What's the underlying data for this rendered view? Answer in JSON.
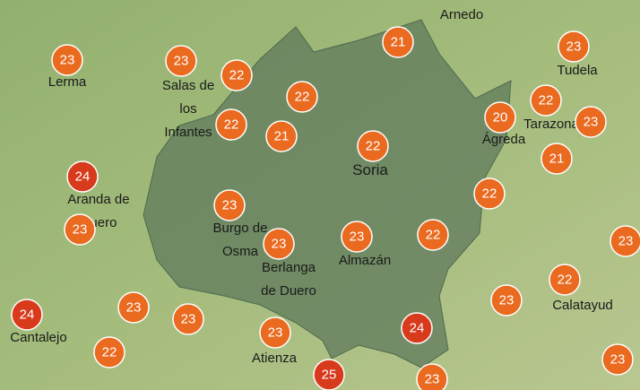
{
  "places": [
    {
      "lines": [
        "Arnedo"
      ]
    },
    {
      "lines": [
        "Lerma"
      ]
    },
    {
      "lines": [
        "Salas de",
        "los",
        "Infantes"
      ]
    },
    {
      "lines": [
        "Tudela"
      ]
    },
    {
      "lines": [
        "Tarazona"
      ]
    },
    {
      "lines": [
        "Ágreda"
      ]
    },
    {
      "lines": [
        "Soria"
      ]
    },
    {
      "lines": [
        "Aranda de",
        "Duero"
      ]
    },
    {
      "lines": [
        "Burgo de",
        "Osma"
      ]
    },
    {
      "lines": [
        "Berlanga",
        "de Duero"
      ]
    },
    {
      "lines": [
        "Almazán"
      ]
    },
    {
      "lines": [
        "Calatayud"
      ]
    },
    {
      "lines": [
        "Cantalejo"
      ]
    },
    {
      "lines": [
        "Atienza"
      ]
    }
  ],
  "markers": [
    23,
    23,
    22,
    22,
    22,
    21,
    22,
    21,
    23,
    22,
    20,
    23,
    21,
    22,
    24,
    23,
    23,
    23,
    23,
    22,
    23,
    22,
    23,
    24,
    23,
    23,
    23,
    24,
    22,
    25,
    23,
    23
  ]
}
